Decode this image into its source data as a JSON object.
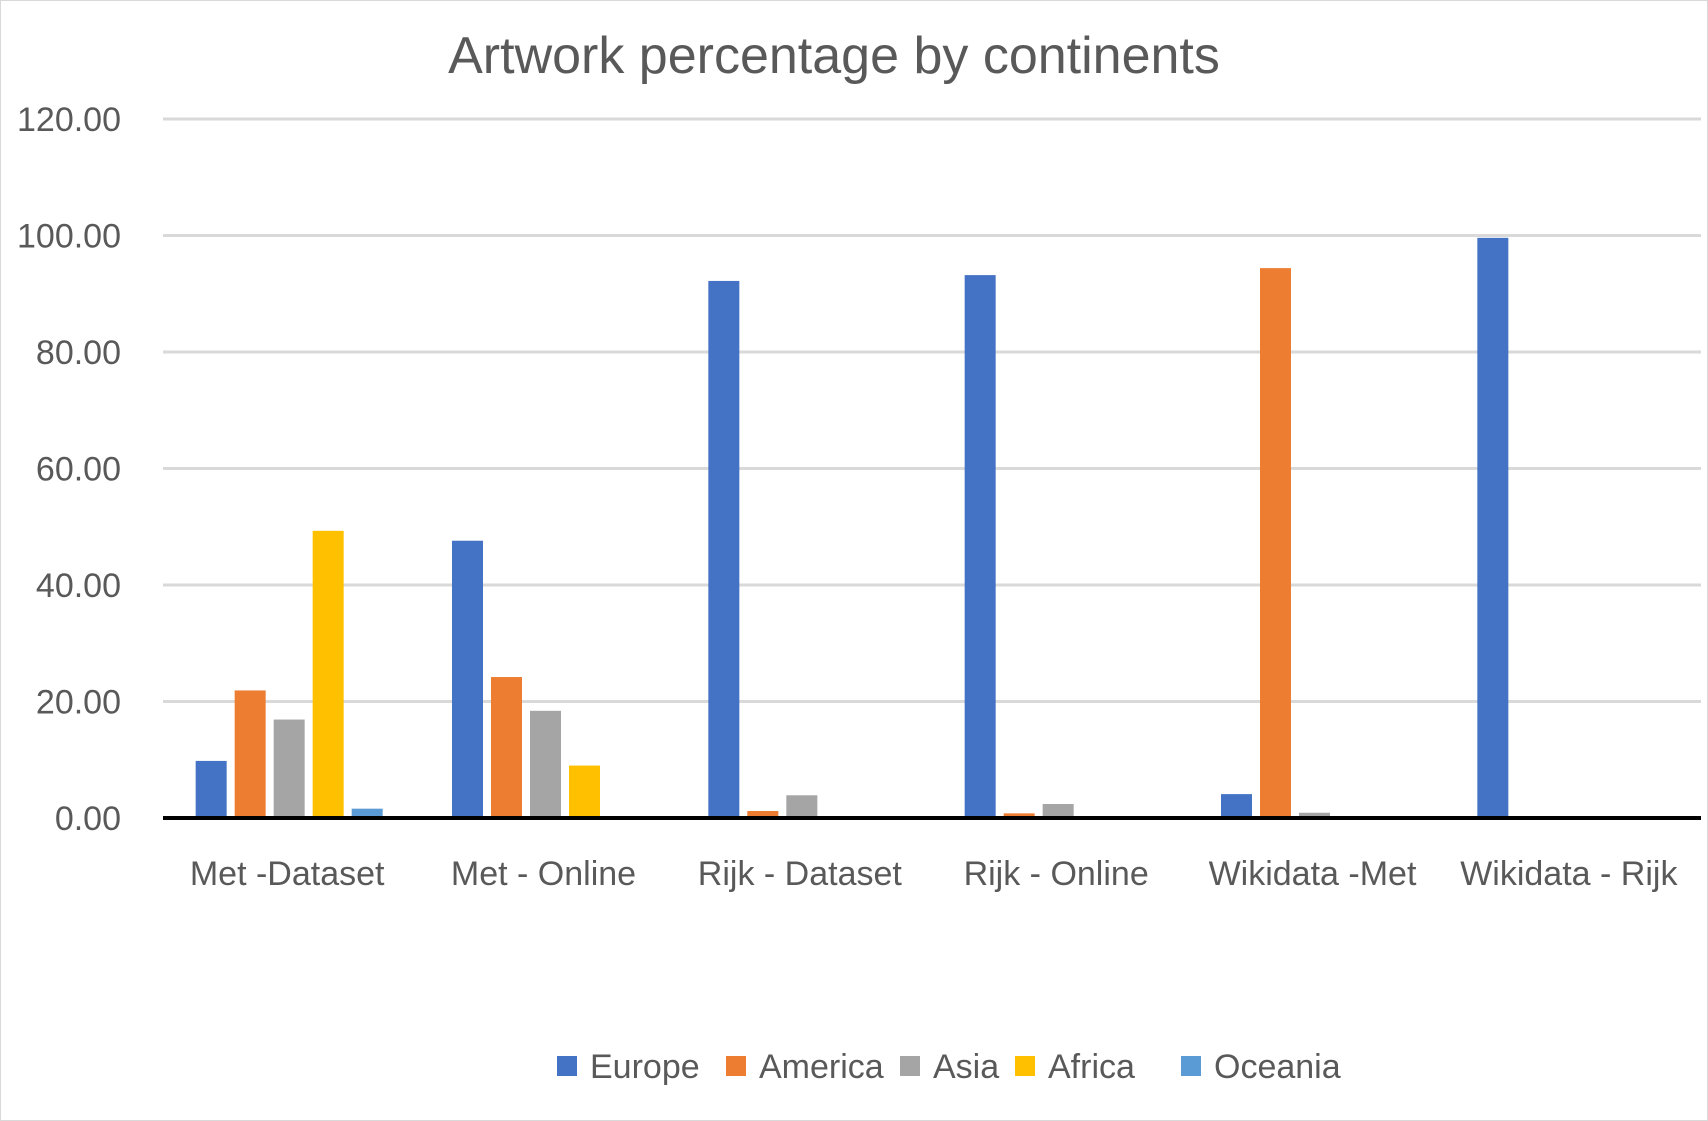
{
  "chart_data": {
    "type": "bar",
    "title": "Artwork percentage by continents",
    "xlabel": "",
    "ylabel": "",
    "ylim": [
      0,
      120
    ],
    "yticks": [
      "0.00",
      "20.00",
      "40.00",
      "60.00",
      "80.00",
      "100.00",
      "120.00"
    ],
    "grid": true,
    "legend_position": "bottom",
    "categories": [
      "Met -Dataset",
      "Met - Online",
      "Rijk - Dataset",
      "Rijk - Online",
      "Wikidata -Met",
      "Wikidata - Rijk"
    ],
    "series": [
      {
        "name": "Europe",
        "color": "#4472c4",
        "values": [
          9.8,
          47.6,
          92.2,
          93.2,
          4.1,
          99.6
        ]
      },
      {
        "name": "America",
        "color": "#ed7d31",
        "values": [
          21.9,
          24.2,
          1.2,
          0.8,
          94.4,
          0
        ]
      },
      {
        "name": "Asia",
        "color": "#a5a5a5",
        "values": [
          16.9,
          18.4,
          3.9,
          2.4,
          0.9,
          0
        ]
      },
      {
        "name": "Africa",
        "color": "#ffc000",
        "values": [
          49.3,
          9.0,
          0,
          0,
          0,
          0
        ]
      },
      {
        "name": "Oceania",
        "color": "#5b9bd5",
        "values": [
          1.6,
          0,
          0,
          0,
          0,
          0
        ]
      }
    ]
  }
}
